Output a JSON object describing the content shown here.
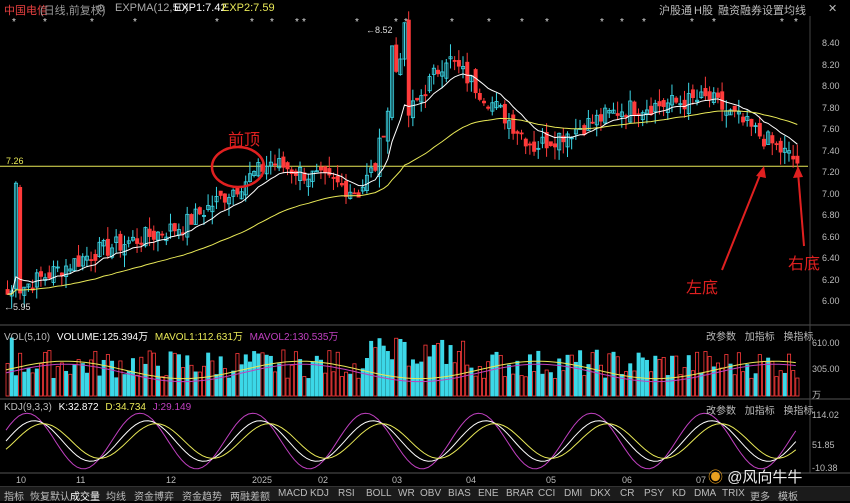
{
  "header": {
    "stock_name": "中国电信",
    "mode": "(日线,前复权)",
    "settings_icon": "gear-icon",
    "exp_indicator": "EXPMA(12,50)",
    "exp1": "EXP1:7.42",
    "exp2": "EXP2:7.59",
    "right_items": [
      "沪股通",
      "H股",
      "融资融券",
      "设置均线"
    ],
    "colors": {
      "exp1": "#ffffff",
      "exp2": "#e8e857",
      "stock_name": "#e84040"
    }
  },
  "price_panel": {
    "axis_ticks": [
      "8.40",
      "8.20",
      "8.00",
      "7.80",
      "7.60",
      "7.40",
      "7.20",
      "7.00",
      "6.80",
      "6.60",
      "6.40",
      "6.20",
      "6.00"
    ],
    "support_line_label": "7.26",
    "high_label": "8.52",
    "low_label": "5.95",
    "annotations": {
      "top": "前顶",
      "left_bottom": "左底",
      "right_bottom": "右底"
    },
    "colors": {
      "up": "#3cd8e8",
      "down": "#ff3b3b",
      "support": "#e8e857",
      "annotation": "#e02020"
    }
  },
  "volume_panel": {
    "indicator": "VOL(5,10)",
    "volume": "VOLUME:125.394万",
    "mavol1": "MAVOL1:112.631万",
    "mavol2": "MAVOL2:130.535万",
    "buttons": [
      "改参数",
      "加指标",
      "换指标"
    ],
    "axis_ticks": [
      "610.00",
      "305.00",
      "万"
    ]
  },
  "kdj_panel": {
    "indicator": "KDJ(9,3,3)",
    "k": "K:32.872",
    "d": "D:34.734",
    "j": "J:29.149",
    "buttons": [
      "改参数",
      "加指标",
      "换指标"
    ],
    "axis_ticks": [
      "114.02",
      "51.85",
      "-10.38"
    ]
  },
  "x_axis": {
    "labels": [
      "10",
      "11",
      "12",
      "2025",
      "02",
      "03",
      "04",
      "05",
      "06",
      "07"
    ]
  },
  "bottom_tabs": [
    "指标",
    "恢复默认",
    "成交量",
    "均线",
    "资金博弈",
    "资金趋势",
    "两融差额",
    "MACD",
    "KDJ",
    "RSI",
    "BOLL",
    "WR",
    "OBV",
    "BIAS",
    "ENE",
    "BRAR",
    "CCI",
    "DMI",
    "DKX",
    "CR",
    "PSY",
    "KD",
    "DMA",
    "TRIX",
    "更多",
    "模板"
  ],
  "active_tab": "成交量",
  "watermark": "@风向牛牛",
  "chart_data": {
    "type": "candlestick",
    "x": [
      "10",
      "11",
      "12",
      "2025",
      "02",
      "03",
      "04",
      "05",
      "06",
      "07"
    ],
    "close_points": [
      6.05,
      6.45,
      6.7,
      7.3,
      7.02,
      8.3,
      7.45,
      7.8,
      7.9,
      7.3
    ],
    "support_level": 7.26,
    "high": 8.52,
    "low": 5.95,
    "ylim": [
      5.9,
      8.55
    ]
  }
}
